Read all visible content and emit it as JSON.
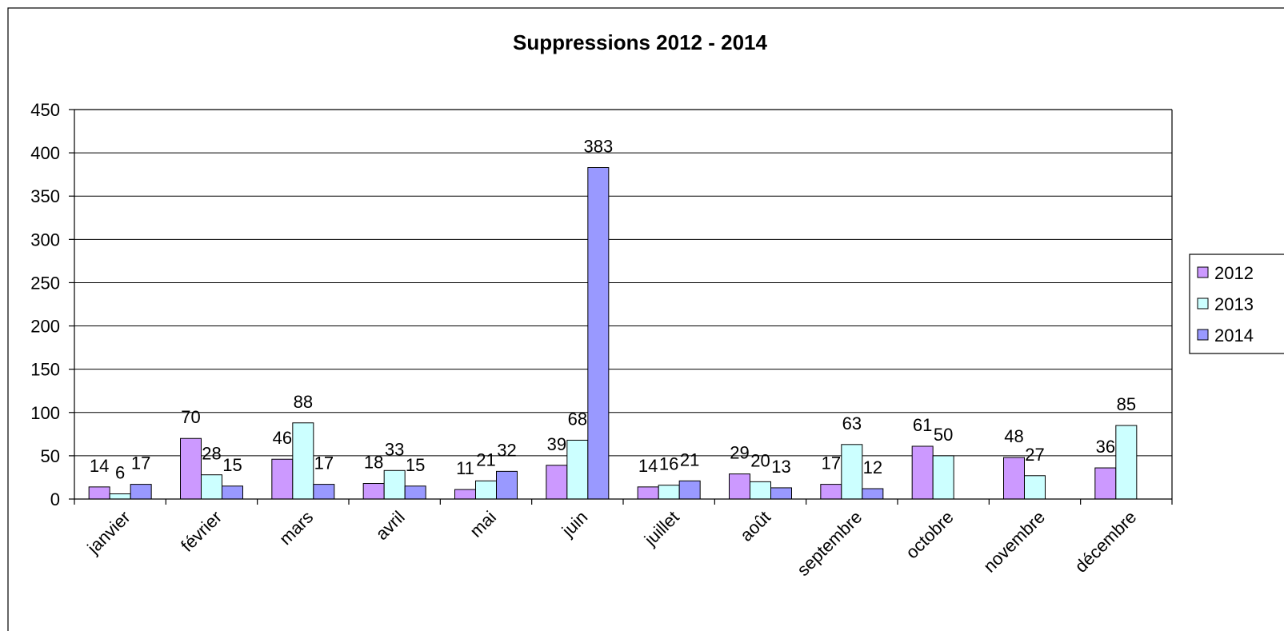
{
  "chart_data": {
    "type": "bar",
    "title": "Suppressions 2012 - 2014",
    "xlabel": "",
    "ylabel": "",
    "ylim": [
      0,
      450
    ],
    "yticks": [
      0,
      50,
      100,
      150,
      200,
      250,
      300,
      350,
      400,
      450
    ],
    "grid": true,
    "legend_position": "right",
    "categories": [
      "janvier",
      "février",
      "mars",
      "avril",
      "mai",
      "juin",
      "juillet",
      "août",
      "septembre",
      "octobre",
      "novembre",
      "décembre"
    ],
    "series": [
      {
        "name": "2012",
        "color": "#CC99FF",
        "values": [
          14,
          70,
          46,
          18,
          11,
          39,
          14,
          29,
          17,
          61,
          48,
          36
        ]
      },
      {
        "name": "2013",
        "color": "#CCFFFF",
        "values": [
          6,
          28,
          88,
          33,
          21,
          68,
          16,
          20,
          63,
          50,
          27,
          85
        ]
      },
      {
        "name": "2014",
        "color": "#9999FF",
        "values": [
          17,
          15,
          17,
          15,
          32,
          383,
          21,
          13,
          12,
          null,
          null,
          null
        ]
      }
    ]
  }
}
